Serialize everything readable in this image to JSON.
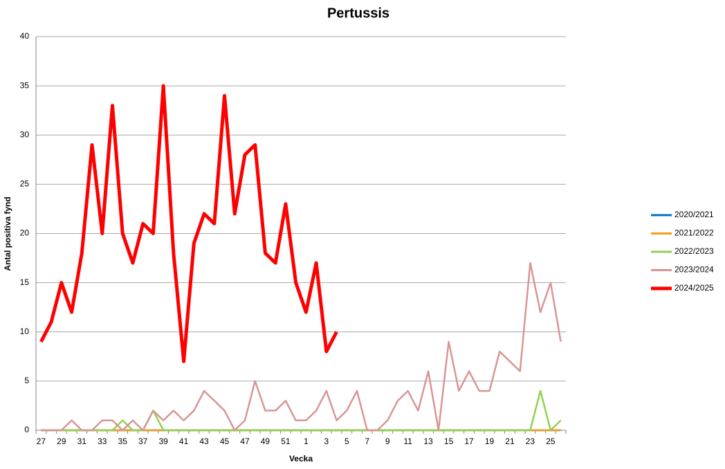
{
  "chart_data": {
    "type": "line",
    "title": "Pertussis",
    "x_label": "Vecka",
    "y_label": "Antal positiva fynd",
    "categories": [
      "27",
      null,
      "29",
      null,
      "31",
      null,
      "33",
      null,
      "35",
      null,
      "37",
      null,
      "39",
      null,
      "41",
      null,
      "43",
      null,
      "45",
      null,
      "47",
      null,
      "49",
      null,
      "51",
      null,
      "1",
      null,
      "3",
      null,
      "5",
      null,
      "7",
      null,
      "9",
      null,
      "11",
      null,
      "13",
      null,
      "15",
      null,
      "17",
      null,
      "19",
      null,
      "21",
      null,
      "23",
      null,
      "25",
      null
    ],
    "ylim": [
      0,
      40
    ],
    "yticks": [
      0,
      5,
      10,
      15,
      20,
      25,
      30,
      35,
      40
    ],
    "grid": true,
    "legend": "right",
    "series": [
      {
        "name": "2020/2021",
        "color": "#0070c0",
        "values": [
          0,
          0,
          0,
          0,
          0,
          0,
          0,
          0,
          0,
          0,
          0,
          0,
          0,
          0,
          0,
          0,
          0,
          0,
          0,
          0,
          0,
          0,
          0,
          0,
          0,
          0,
          0,
          0,
          0,
          0,
          0,
          0,
          0,
          0,
          0,
          0,
          0,
          0,
          0,
          0,
          0,
          0,
          0,
          0,
          0,
          0,
          0,
          0,
          0,
          0,
          0,
          0
        ]
      },
      {
        "name": "2021/2022",
        "color": "#f59d1b",
        "values": [
          0,
          0,
          0,
          0,
          0,
          0,
          0,
          0,
          0,
          0,
          0,
          0,
          0,
          0,
          0,
          0,
          0,
          0,
          0,
          0,
          0,
          0,
          0,
          0,
          0,
          0,
          0,
          0,
          0,
          0,
          0,
          0,
          0,
          0,
          0,
          0,
          0,
          0,
          0,
          0,
          0,
          0,
          0,
          0,
          0,
          0,
          0,
          0,
          0,
          0,
          0,
          0
        ]
      },
      {
        "name": "2022/2023",
        "color": "#92d050",
        "values": [
          0,
          0,
          0,
          0,
          0,
          0,
          0,
          0,
          1,
          0,
          0,
          2,
          0,
          0,
          0,
          0,
          0,
          0,
          0,
          0,
          0,
          0,
          0,
          0,
          0,
          0,
          0,
          0,
          0,
          0,
          0,
          0,
          0,
          0,
          0,
          0,
          0,
          0,
          0,
          0,
          0,
          0,
          0,
          0,
          0,
          0,
          0,
          0,
          0,
          4,
          0,
          1
        ]
      },
      {
        "name": "2023/2024",
        "color": "#d99594",
        "values": [
          0,
          0,
          0,
          1,
          0,
          0,
          1,
          1,
          0,
          1,
          0,
          2,
          1,
          2,
          1,
          2,
          4,
          3,
          2,
          0,
          1,
          5,
          2,
          2,
          3,
          1,
          1,
          2,
          4,
          1,
          2,
          4,
          0,
          0,
          1,
          3,
          4,
          2,
          6,
          0,
          9,
          4,
          6,
          4,
          4,
          8,
          7,
          6,
          17,
          12,
          15,
          9
        ]
      },
      {
        "name": "2024/2025",
        "color": "#ff0000",
        "values": [
          9,
          11,
          15,
          12,
          18,
          29,
          20,
          33,
          20,
          17,
          21,
          20,
          35,
          18,
          7,
          19,
          22,
          21,
          34,
          22,
          28,
          29,
          18,
          17,
          23,
          15,
          12,
          17,
          8,
          10,
          null,
          null,
          null,
          null,
          null,
          null,
          null,
          null,
          null,
          null,
          null,
          null,
          null,
          null,
          null,
          null,
          null,
          null,
          null,
          null,
          null,
          null
        ]
      }
    ]
  }
}
